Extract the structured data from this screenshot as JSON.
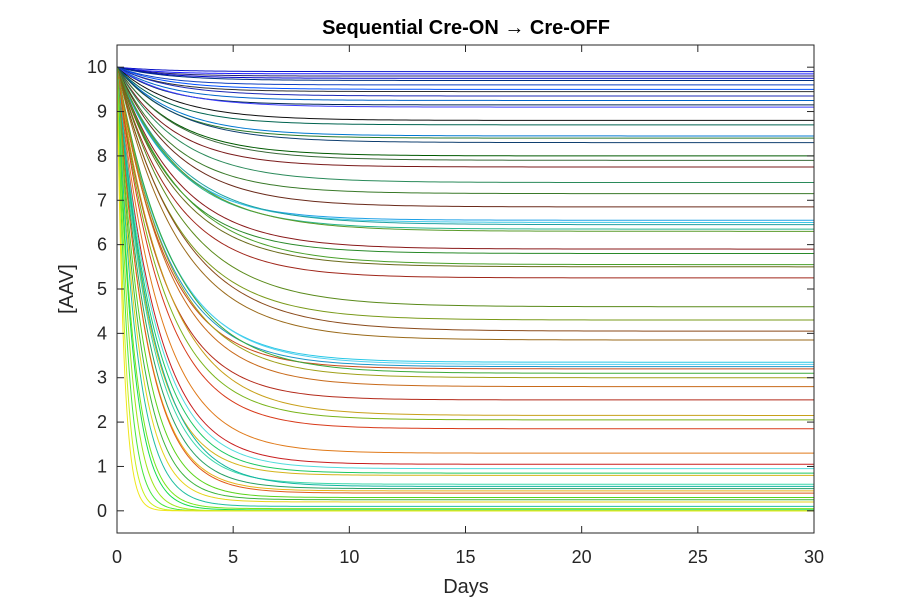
{
  "chart_data": {
    "type": "line",
    "title": "Sequential Cre-ON → Cre-OFF",
    "xlabel": "Days",
    "ylabel": "[AAV]",
    "xlim": [
      0,
      30
    ],
    "ylim": [
      -0.5,
      10.5
    ],
    "xticks": [
      0,
      5,
      10,
      15,
      20,
      25,
      30
    ],
    "yticks": [
      0,
      1,
      2,
      3,
      4,
      5,
      6,
      7,
      8,
      9,
      10
    ],
    "grid": false,
    "legend": "none",
    "initial_value": 10,
    "curve_model": "exponential decay from 10 to steady-state plateau",
    "plateaus": [
      9.9,
      9.85,
      9.8,
      9.75,
      9.7,
      9.6,
      9.5,
      9.45,
      9.35,
      9.25,
      9.15,
      9.1,
      8.8,
      8.7,
      8.45,
      8.4,
      8.3,
      8.0,
      7.9,
      7.75,
      7.4,
      7.15,
      6.85,
      6.55,
      6.5,
      6.45,
      6.35,
      6.3,
      5.9,
      5.8,
      5.55,
      5.5,
      5.25,
      4.6,
      4.3,
      4.05,
      3.85,
      3.35,
      3.3,
      3.25,
      3.2,
      3.1,
      3.0,
      2.8,
      2.5,
      2.15,
      2.05,
      1.85,
      1.3,
      1.05,
      0.95,
      0.85,
      0.8,
      0.6,
      0.55,
      0.5,
      0.45,
      0.4,
      0.3,
      0.25,
      0.2,
      0.1,
      0.05,
      0.02,
      0.0,
      0.0,
      0.0,
      0.0
    ],
    "decay_rates": [
      0.5,
      0.6,
      0.55,
      0.5,
      0.45,
      0.5,
      0.45,
      0.5,
      0.42,
      0.45,
      0.48,
      0.42,
      0.4,
      0.44,
      0.4,
      0.42,
      0.38,
      0.4,
      0.38,
      0.42,
      0.38,
      0.4,
      0.38,
      0.42,
      0.4,
      0.37,
      0.38,
      0.36,
      0.38,
      0.4,
      0.36,
      0.38,
      0.4,
      0.36,
      0.38,
      0.36,
      0.38,
      0.45,
      0.44,
      0.46,
      0.48,
      0.42,
      0.44,
      0.45,
      0.5,
      0.46,
      0.5,
      0.52,
      0.55,
      0.6,
      0.62,
      0.65,
      0.7,
      0.7,
      0.65,
      0.75,
      0.8,
      0.8,
      0.9,
      1.0,
      1.1,
      1.2,
      1.4,
      1.5,
      1.8,
      2.2,
      2.8,
      3.5
    ],
    "colors": [
      "#0a14c8",
      "#1a1aff",
      "#202070",
      "#0000cc",
      "#003080",
      "#1040c0",
      "#0050ff",
      "#303030",
      "#1c28b4",
      "#0064c8",
      "#002850",
      "#3c3cff",
      "#101010",
      "#006450",
      "#0078d0",
      "#2a7a2a",
      "#104070",
      "#005a00",
      "#3a6a3a",
      "#7a1a1a",
      "#2a8a5a",
      "#3a7a2a",
      "#6a2a1a",
      "#1ea0e6",
      "#3cc8e6",
      "#20a0a0",
      "#28b48c",
      "#5a9a2a",
      "#8a1a1a",
      "#2a8a2a",
      "#4aa02a",
      "#6a6a1a",
      "#a0261a",
      "#5a8a1a",
      "#7a9a1a",
      "#8a4a1a",
      "#9a6a1a",
      "#28c8e6",
      "#50d0f0",
      "#1e96c8",
      "#c84a1a",
      "#3aaa3a",
      "#a0a01a",
      "#c86a1a",
      "#b42a1a",
      "#c8a01a",
      "#7ab41a",
      "#d83a1a",
      "#e07a1a",
      "#c81e1e",
      "#50dcdc",
      "#1ec864",
      "#d4b41a",
      "#3cd8aa",
      "#12b4a0",
      "#28a064",
      "#e6b41a",
      "#e05a1a",
      "#5ad41a",
      "#3cb43c",
      "#e6d41a",
      "#1ebea0",
      "#78e61a",
      "#14dc50",
      "#a0e61a",
      "#46e63c",
      "#c8f01a",
      "#f0e61a"
    ]
  }
}
